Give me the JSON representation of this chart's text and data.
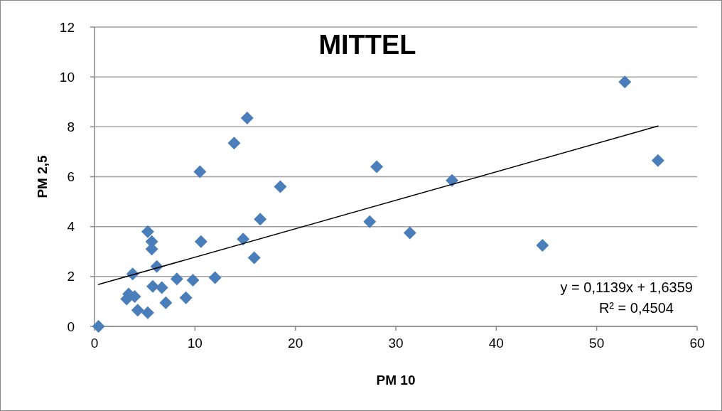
{
  "chart_data": {
    "type": "scatter",
    "title": "MITTEL",
    "xlabel": "PM 10",
    "ylabel": "PM 2,5",
    "xlim": [
      0,
      60
    ],
    "xticks": [
      0,
      10,
      20,
      30,
      40,
      50,
      60
    ],
    "ylim": [
      0,
      12
    ],
    "yticks": [
      0,
      2,
      4,
      6,
      8,
      10,
      12
    ],
    "grid": "y",
    "marker": "diamond",
    "annotations": [
      "y = 0,1139x + 1,6359",
      "R² = 0,4504"
    ],
    "series": [
      {
        "color": "#4a7ebb",
        "x": [
          0.4,
          3.2,
          3.4,
          4.0,
          3.8,
          4.3,
          5.3,
          5.3,
          5.7,
          5.7,
          6.2,
          5.8,
          6.7,
          7.1,
          8.2,
          9.1,
          9.8,
          10.5,
          10.6,
          12.0,
          13.9,
          14.8,
          15.2,
          15.9,
          16.5,
          18.5,
          27.4,
          28.1,
          31.4,
          35.6,
          44.6,
          52.8,
          56.1
        ],
        "values": [
          0.0,
          1.1,
          1.3,
          1.2,
          2.1,
          0.65,
          0.55,
          3.8,
          3.4,
          3.1,
          2.4,
          1.6,
          1.55,
          0.95,
          1.9,
          1.15,
          1.85,
          6.2,
          3.4,
          1.95,
          7.35,
          3.5,
          8.35,
          2.75,
          4.3,
          5.6,
          4.2,
          6.4,
          3.75,
          5.85,
          3.25,
          9.8,
          6.65
        ]
      },
      {
        "type": "line",
        "color": "#000000",
        "marker": "none",
        "x": [
          0.4,
          56.1
        ],
        "values": [
          1.68,
          8.03
        ]
      }
    ]
  }
}
